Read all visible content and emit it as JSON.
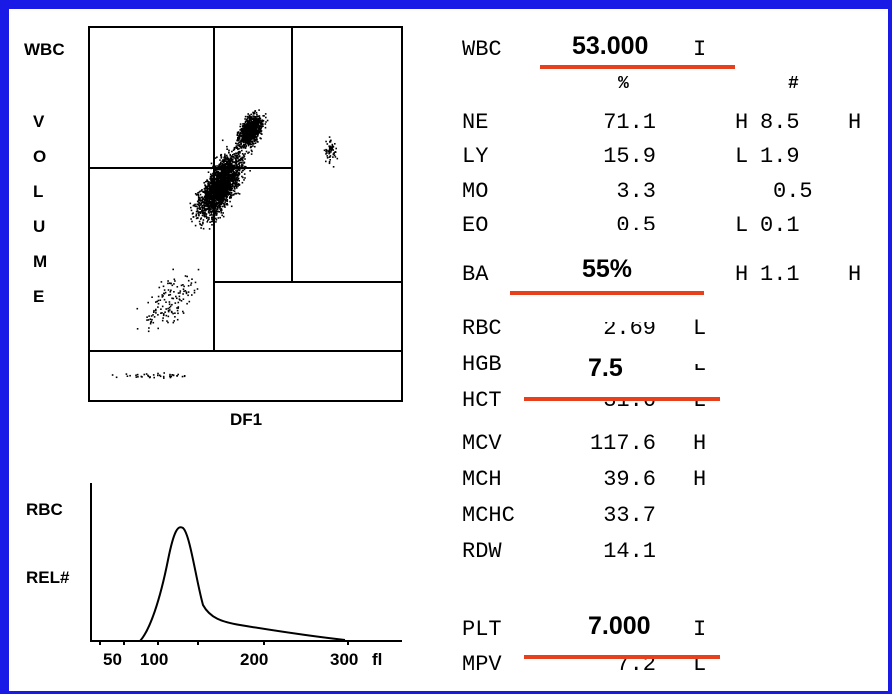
{
  "scatter": {
    "y_label": "WBC",
    "y_letters": [
      "V",
      "O",
      "L",
      "U",
      "M",
      "E"
    ],
    "x_label": "DF1"
  },
  "histogram": {
    "y_label_top": "RBC",
    "y_label_bottom": "REL#",
    "x_ticks": [
      "50",
      "100",
      "200",
      "300",
      "fl"
    ]
  },
  "wbc": {
    "label": "WBC",
    "flag": "I",
    "overlay_value": "53.000",
    "col_percent": "%",
    "col_count": "#",
    "rows": [
      {
        "name": "NE",
        "pct": "71.1",
        "flag": "H",
        "count": "8.5",
        "flag2": "H"
      },
      {
        "name": "LY",
        "pct": "15.9",
        "flag": "L",
        "count": "1.9",
        "flag2": ""
      },
      {
        "name": "MO",
        "pct": "3.3",
        "flag": "",
        "count": "0.5",
        "flag2": ""
      },
      {
        "name": "EO",
        "pct": "0.5",
        "flag": "L",
        "count": "0.1",
        "flag2": ""
      },
      {
        "name": "BA",
        "pct": "",
        "flag": "H",
        "count": "1.1",
        "flag2": "H"
      }
    ],
    "ba_overlay": "55%"
  },
  "rbc": {
    "rows": [
      {
        "name": "RBC",
        "value": "2.69",
        "flag": "L"
      },
      {
        "name": "HGB",
        "value": "",
        "flag": "L"
      },
      {
        "name": "HCT",
        "value": "31.6",
        "flag": "L"
      },
      {
        "name": "MCV",
        "value": "117.6",
        "flag": "H"
      },
      {
        "name": "MCH",
        "value": "39.6",
        "flag": "H"
      },
      {
        "name": "MCHC",
        "value": "33.7",
        "flag": ""
      },
      {
        "name": "RDW",
        "value": "14.1",
        "flag": ""
      }
    ],
    "hgb_overlay": "7.5"
  },
  "plt": {
    "plt_label": "PLT",
    "plt_flag": "I",
    "plt_overlay": "7.000",
    "mpv_label": "MPV",
    "mpv_value": "7.2",
    "mpv_flag": "L"
  },
  "colors": {
    "frame": "#1a1ae6",
    "underline": "#e8401c"
  }
}
